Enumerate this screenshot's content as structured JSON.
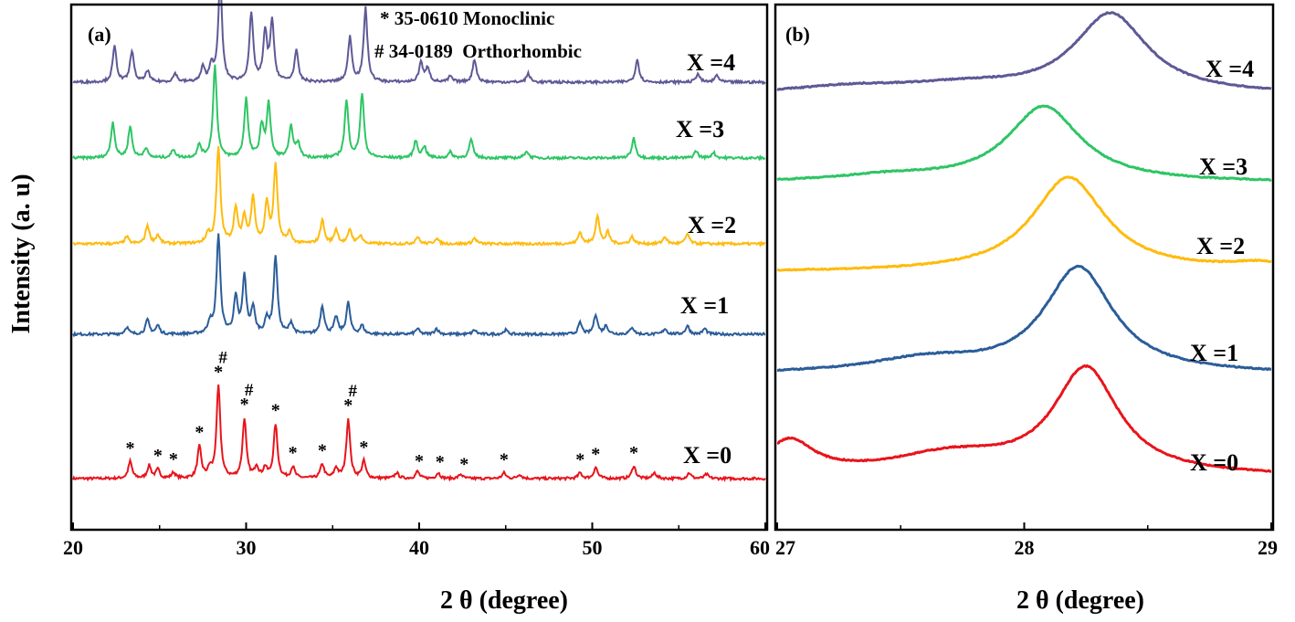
{
  "figure": {
    "ylabel": "Intensity (a. u)"
  },
  "colors": {
    "x0": "#e8141c",
    "x1": "#2b5d9a",
    "x2": "#ffbb0d",
    "x3": "#2ec565",
    "x4": "#5e5996"
  },
  "chart_data": [
    {
      "type": "line",
      "panel_label": "(a)",
      "xlabel": "2 θ (degree)",
      "ylabel": "Intensity (a. u)",
      "xlim": [
        20,
        60
      ],
      "xticks": [
        "20",
        "30",
        "40",
        "50",
        "60"
      ],
      "y_ticks_shown": false,
      "legend": [
        "* 35-0610 Monoclinic",
        "# 34-0189  Orthorhombic"
      ],
      "series": [
        {
          "name": "X =0",
          "color": "#e8141c",
          "offset": 0,
          "peaks": [
            [
              23.3,
              0.12
            ],
            [
              24.4,
              0.09
            ],
            [
              24.9,
              0.06
            ],
            [
              25.8,
              0.04
            ],
            [
              27.3,
              0.22
            ],
            [
              27.9,
              0.06
            ],
            [
              28.4,
              0.65
            ],
            [
              29.9,
              0.42
            ],
            [
              30.6,
              0.08
            ],
            [
              31.1,
              0.07
            ],
            [
              31.7,
              0.38
            ],
            [
              32.7,
              0.08
            ],
            [
              34.4,
              0.1
            ],
            [
              35.2,
              0.07
            ],
            [
              35.9,
              0.42
            ],
            [
              36.8,
              0.12
            ],
            [
              38.7,
              0.04
            ],
            [
              39.9,
              0.05
            ],
            [
              41.1,
              0.04
            ],
            [
              42.4,
              0.03
            ],
            [
              44.9,
              0.04
            ],
            [
              45.8,
              0.03
            ],
            [
              49.3,
              0.04
            ],
            [
              50.2,
              0.08
            ],
            [
              52.4,
              0.09
            ],
            [
              53.6,
              0.04
            ],
            [
              55.6,
              0.04
            ],
            [
              56.6,
              0.03
            ]
          ],
          "star_marks": [
            23.3,
            24.9,
            25.8,
            27.3,
            28.4,
            29.9,
            31.7,
            32.7,
            34.4,
            35.9,
            36.8,
            40.0,
            41.2,
            42.6,
            44.9,
            49.3,
            50.2,
            52.4
          ],
          "hash_marks": [
            28.4,
            29.9,
            35.9
          ]
        },
        {
          "name": "X =1",
          "color": "#2b5d9a",
          "offset": 1,
          "peaks": [
            [
              23.1,
              0.05
            ],
            [
              24.3,
              0.1
            ],
            [
              24.9,
              0.06
            ],
            [
              27.9,
              0.08
            ],
            [
              28.4,
              0.7
            ],
            [
              29.4,
              0.25
            ],
            [
              29.9,
              0.4
            ],
            [
              30.4,
              0.18
            ],
            [
              31.2,
              0.1
            ],
            [
              31.7,
              0.55
            ],
            [
              32.6,
              0.08
            ],
            [
              34.4,
              0.2
            ],
            [
              35.2,
              0.12
            ],
            [
              35.9,
              0.22
            ],
            [
              36.7,
              0.06
            ],
            [
              39.9,
              0.04
            ],
            [
              41.0,
              0.04
            ],
            [
              43.2,
              0.03
            ],
            [
              45.0,
              0.03
            ],
            [
              49.3,
              0.08
            ],
            [
              50.2,
              0.14
            ],
            [
              50.8,
              0.06
            ],
            [
              52.3,
              0.05
            ],
            [
              54.2,
              0.04
            ],
            [
              55.5,
              0.06
            ],
            [
              56.5,
              0.04
            ]
          ]
        },
        {
          "name": "X =2",
          "color": "#ffbb0d",
          "offset": 2,
          "peaks": [
            [
              23.1,
              0.05
            ],
            [
              24.3,
              0.13
            ],
            [
              24.9,
              0.06
            ],
            [
              27.8,
              0.07
            ],
            [
              28.4,
              0.68
            ],
            [
              29.4,
              0.25
            ],
            [
              29.9,
              0.18
            ],
            [
              30.4,
              0.33
            ],
            [
              31.2,
              0.28
            ],
            [
              31.7,
              0.55
            ],
            [
              32.5,
              0.08
            ],
            [
              34.4,
              0.17
            ],
            [
              35.2,
              0.1
            ],
            [
              36.0,
              0.1
            ],
            [
              36.6,
              0.06
            ],
            [
              39.9,
              0.05
            ],
            [
              41.0,
              0.04
            ],
            [
              43.2,
              0.04
            ],
            [
              49.3,
              0.08
            ],
            [
              50.3,
              0.2
            ],
            [
              50.9,
              0.08
            ],
            [
              52.3,
              0.05
            ],
            [
              54.2,
              0.05
            ],
            [
              55.5,
              0.07
            ]
          ]
        },
        {
          "name": "X =3",
          "color": "#2ec565",
          "offset": 3,
          "peaks": [
            [
              22.3,
              0.25
            ],
            [
              23.3,
              0.22
            ],
            [
              24.2,
              0.07
            ],
            [
              25.8,
              0.06
            ],
            [
              27.3,
              0.09
            ],
            [
              28.2,
              0.65
            ],
            [
              30.0,
              0.42
            ],
            [
              30.9,
              0.22
            ],
            [
              31.3,
              0.38
            ],
            [
              32.6,
              0.22
            ],
            [
              33.0,
              0.1
            ],
            [
              35.8,
              0.4
            ],
            [
              36.7,
              0.45
            ],
            [
              39.8,
              0.12
            ],
            [
              40.3,
              0.08
            ],
            [
              41.8,
              0.04
            ],
            [
              43.0,
              0.13
            ],
            [
              46.2,
              0.05
            ],
            [
              52.4,
              0.14
            ],
            [
              56.0,
              0.05
            ],
            [
              57.0,
              0.04
            ]
          ]
        },
        {
          "name": "X =4",
          "color": "#5e5996",
          "offset": 4,
          "peaks": [
            [
              22.4,
              0.25
            ],
            [
              23.4,
              0.22
            ],
            [
              24.3,
              0.08
            ],
            [
              25.9,
              0.06
            ],
            [
              27.5,
              0.1
            ],
            [
              28.0,
              0.12
            ],
            [
              28.5,
              0.72
            ],
            [
              30.3,
              0.48
            ],
            [
              31.1,
              0.34
            ],
            [
              31.5,
              0.42
            ],
            [
              32.9,
              0.22
            ],
            [
              36.0,
              0.32
            ],
            [
              36.9,
              0.52
            ],
            [
              40.1,
              0.14
            ],
            [
              40.5,
              0.1
            ],
            [
              41.8,
              0.04
            ],
            [
              43.2,
              0.16
            ],
            [
              46.3,
              0.06
            ],
            [
              52.6,
              0.16
            ],
            [
              56.1,
              0.06
            ],
            [
              57.2,
              0.05
            ]
          ]
        }
      ]
    },
    {
      "type": "line",
      "panel_label": "(b)",
      "xlabel": "2 θ (degree)",
      "xlim": [
        27,
        29
      ],
      "xticks": [
        "27",
        "28",
        "29"
      ],
      "y_ticks_shown": false,
      "series": [
        {
          "name": "X =0",
          "color": "#e8141c",
          "offset": 0,
          "peaks": [
            [
              27.05,
              0.3,
              0.12
            ],
            [
              27.7,
              0.18,
              0.3
            ],
            [
              28.25,
              0.95,
              0.16
            ]
          ]
        },
        {
          "name": "X =1",
          "color": "#2b5d9a",
          "offset": 1,
          "peaks": [
            [
              27.6,
              0.12,
              0.28
            ],
            [
              28.22,
              0.95,
              0.17
            ]
          ]
        },
        {
          "name": "X =2",
          "color": "#ffbb0d",
          "offset": 2,
          "peaks": [
            [
              28.18,
              0.85,
              0.18
            ],
            [
              28.95,
              0.06,
              0.15
            ]
          ]
        },
        {
          "name": "X =3",
          "color": "#2ec565",
          "offset": 3,
          "peaks": [
            [
              27.45,
              0.05,
              0.25
            ],
            [
              28.08,
              0.68,
              0.18
            ]
          ]
        },
        {
          "name": "X =4",
          "color": "#5e5996",
          "offset": 4,
          "peaks": [
            [
              27.3,
              0.06,
              0.3
            ],
            [
              27.75,
              0.07,
              0.3
            ],
            [
              28.35,
              0.72,
              0.18
            ]
          ]
        }
      ]
    }
  ]
}
